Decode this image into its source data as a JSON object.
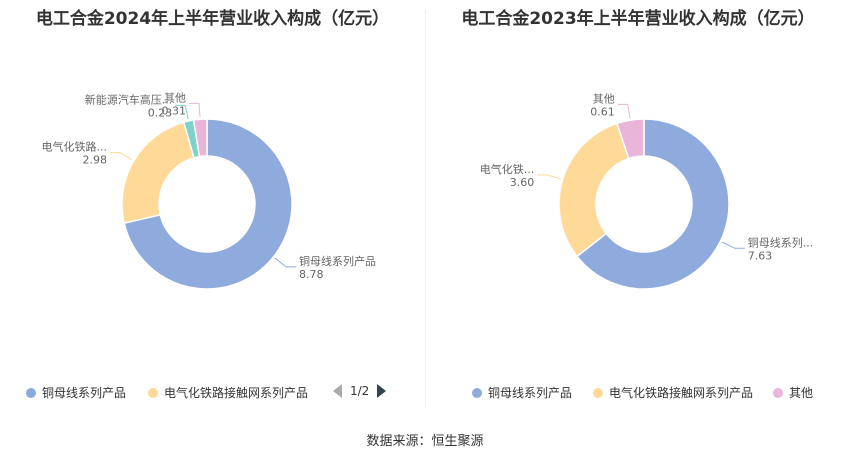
{
  "chart_data": [
    {
      "type": "pie",
      "title": "电工合金2024年上半年营业收入构成（亿元）",
      "series": [
        {
          "name": "铜母线系列产品",
          "label": "铜母线系列产品",
          "value": 8.78,
          "value_text": "8.78",
          "color": "#8faadc"
        },
        {
          "name": "电气化铁路接触网系列产品",
          "label": "电气化铁路...",
          "value": 2.98,
          "value_text": "2.98",
          "color": "#ffd997"
        },
        {
          "name": "新能源汽车高压线束",
          "label": "新能源汽车高压...",
          "value": 0.23,
          "value_text": "0.23",
          "color": "#7fd1cc"
        },
        {
          "name": "其他",
          "label": "其他",
          "value": 0.31,
          "value_text": "0.31",
          "color": "#e9b5d9"
        }
      ],
      "legend": {
        "items": [
          "铜母线系列产品",
          "电气化铁路接触网系列产品"
        ],
        "page": "1/2",
        "placement": "bottom"
      }
    },
    {
      "type": "pie",
      "title": "电工合金2023年上半年营业收入构成（亿元）",
      "series": [
        {
          "name": "铜母线系列产品",
          "label": "铜母线系列...",
          "value": 7.63,
          "value_text": "7.63",
          "color": "#8faadc"
        },
        {
          "name": "电气化铁路接触网系列产品",
          "label": "电气化铁...",
          "value": 3.6,
          "value_text": "3.60",
          "color": "#ffd997"
        },
        {
          "name": "其他",
          "label": "其他",
          "value": 0.61,
          "value_text": "0.61",
          "color": "#e9b5d9"
        }
      ],
      "legend": {
        "items": [
          "铜母线系列产品",
          "电气化铁路接触网系列产品",
          "其他"
        ],
        "placement": "bottom"
      }
    }
  ],
  "footer": "数据来源：恒生聚源"
}
